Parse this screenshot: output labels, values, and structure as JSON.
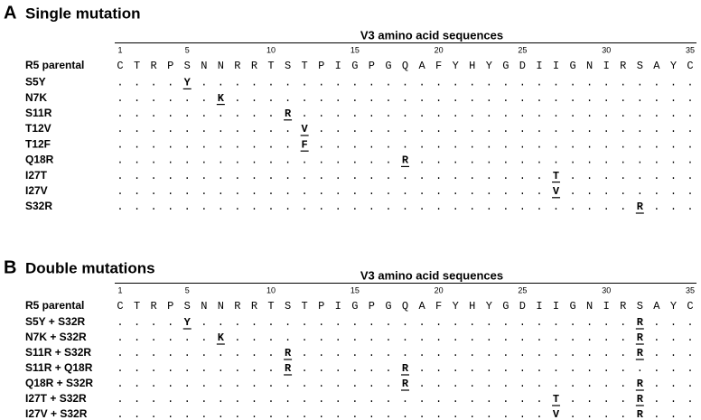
{
  "panels": [
    {
      "letter": "A",
      "title": "Single mutation",
      "header": "V3 amino acid sequences",
      "positions": [
        1,
        5,
        10,
        15,
        20,
        25,
        30,
        35
      ],
      "rows": [
        {
          "label": "R5 parental",
          "residues": [
            "C",
            "T",
            "R",
            "P",
            "S",
            "N",
            "N",
            "R",
            "R",
            "T",
            "S",
            "T",
            "P",
            "I",
            "G",
            "P",
            "G",
            "Q",
            "A",
            "F",
            "Y",
            "H",
            "Y",
            "G",
            "D",
            "I",
            "I",
            "G",
            "N",
            "I",
            "R",
            "S",
            "A",
            "Y",
            "C"
          ]
        },
        {
          "label": "S5Y",
          "residues": [
            ".",
            ".",
            ".",
            ".",
            "Y",
            ".",
            ".",
            ".",
            ".",
            ".",
            ".",
            ".",
            ".",
            ".",
            ".",
            ".",
            ".",
            ".",
            ".",
            ".",
            ".",
            ".",
            ".",
            ".",
            ".",
            ".",
            ".",
            ".",
            ".",
            ".",
            ".",
            ".",
            ".",
            ".",
            "."
          ]
        },
        {
          "label": "N7K",
          "residues": [
            ".",
            ".",
            ".",
            ".",
            ".",
            ".",
            "K",
            ".",
            ".",
            ".",
            ".",
            ".",
            ".",
            ".",
            ".",
            ".",
            ".",
            ".",
            ".",
            ".",
            ".",
            ".",
            ".",
            ".",
            ".",
            ".",
            ".",
            ".",
            ".",
            ".",
            ".",
            ".",
            ".",
            ".",
            "."
          ]
        },
        {
          "label": "S11R",
          "residues": [
            ".",
            ".",
            ".",
            ".",
            ".",
            ".",
            ".",
            ".",
            ".",
            ".",
            "R",
            ".",
            ".",
            ".",
            ".",
            ".",
            ".",
            ".",
            ".",
            ".",
            ".",
            ".",
            ".",
            ".",
            ".",
            ".",
            ".",
            ".",
            ".",
            ".",
            ".",
            ".",
            ".",
            ".",
            "."
          ]
        },
        {
          "label": "T12V",
          "residues": [
            ".",
            ".",
            ".",
            ".",
            ".",
            ".",
            ".",
            ".",
            ".",
            ".",
            ".",
            "V",
            ".",
            ".",
            ".",
            ".",
            ".",
            ".",
            ".",
            ".",
            ".",
            ".",
            ".",
            ".",
            ".",
            ".",
            ".",
            ".",
            ".",
            ".",
            ".",
            ".",
            ".",
            ".",
            "."
          ]
        },
        {
          "label": "T12F",
          "residues": [
            ".",
            ".",
            ".",
            ".",
            ".",
            ".",
            ".",
            ".",
            ".",
            ".",
            ".",
            "F",
            ".",
            ".",
            ".",
            ".",
            ".",
            ".",
            ".",
            ".",
            ".",
            ".",
            ".",
            ".",
            ".",
            ".",
            ".",
            ".",
            ".",
            ".",
            ".",
            ".",
            ".",
            ".",
            "."
          ]
        },
        {
          "label": "Q18R",
          "residues": [
            ".",
            ".",
            ".",
            ".",
            ".",
            ".",
            ".",
            ".",
            ".",
            ".",
            ".",
            ".",
            ".",
            ".",
            ".",
            ".",
            ".",
            "R",
            ".",
            ".",
            ".",
            ".",
            ".",
            ".",
            ".",
            ".",
            ".",
            ".",
            ".",
            ".",
            ".",
            ".",
            ".",
            ".",
            "."
          ]
        },
        {
          "label": "I27T",
          "residues": [
            ".",
            ".",
            ".",
            ".",
            ".",
            ".",
            ".",
            ".",
            ".",
            ".",
            ".",
            ".",
            ".",
            ".",
            ".",
            ".",
            ".",
            ".",
            ".",
            ".",
            ".",
            ".",
            ".",
            ".",
            ".",
            ".",
            "T",
            ".",
            ".",
            ".",
            ".",
            ".",
            ".",
            ".",
            "."
          ]
        },
        {
          "label": "I27V",
          "residues": [
            ".",
            ".",
            ".",
            ".",
            ".",
            ".",
            ".",
            ".",
            ".",
            ".",
            ".",
            ".",
            ".",
            ".",
            ".",
            ".",
            ".",
            ".",
            ".",
            ".",
            ".",
            ".",
            ".",
            ".",
            ".",
            ".",
            "V",
            ".",
            ".",
            ".",
            ".",
            ".",
            ".",
            ".",
            "."
          ]
        },
        {
          "label": "S32R",
          "residues": [
            ".",
            ".",
            ".",
            ".",
            ".",
            ".",
            ".",
            ".",
            ".",
            ".",
            ".",
            ".",
            ".",
            ".",
            ".",
            ".",
            ".",
            ".",
            ".",
            ".",
            ".",
            ".",
            ".",
            ".",
            ".",
            ".",
            ".",
            ".",
            ".",
            ".",
            ".",
            "R",
            ".",
            ".",
            "."
          ]
        }
      ]
    },
    {
      "letter": "B",
      "title": "Double mutations",
      "header": "V3 amino acid sequences",
      "positions": [
        1,
        5,
        10,
        15,
        20,
        25,
        30,
        35
      ],
      "rows": [
        {
          "label": "R5 parental",
          "residues": [
            "C",
            "T",
            "R",
            "P",
            "S",
            "N",
            "N",
            "R",
            "R",
            "T",
            "S",
            "T",
            "P",
            "I",
            "G",
            "P",
            "G",
            "Q",
            "A",
            "F",
            "Y",
            "H",
            "Y",
            "G",
            "D",
            "I",
            "I",
            "G",
            "N",
            "I",
            "R",
            "S",
            "A",
            "Y",
            "C"
          ]
        },
        {
          "label": "S5Y + S32R",
          "residues": [
            ".",
            ".",
            ".",
            ".",
            "Y",
            ".",
            ".",
            ".",
            ".",
            ".",
            ".",
            ".",
            ".",
            ".",
            ".",
            ".",
            ".",
            ".",
            ".",
            ".",
            ".",
            ".",
            ".",
            ".",
            ".",
            ".",
            ".",
            ".",
            ".",
            ".",
            ".",
            "R",
            ".",
            ".",
            "."
          ]
        },
        {
          "label": "N7K + S32R",
          "residues": [
            ".",
            ".",
            ".",
            ".",
            ".",
            ".",
            "K",
            ".",
            ".",
            ".",
            ".",
            ".",
            ".",
            ".",
            ".",
            ".",
            ".",
            ".",
            ".",
            ".",
            ".",
            ".",
            ".",
            ".",
            ".",
            ".",
            ".",
            ".",
            ".",
            ".",
            ".",
            "R",
            ".",
            ".",
            "."
          ]
        },
        {
          "label": "S11R + S32R",
          "residues": [
            ".",
            ".",
            ".",
            ".",
            ".",
            ".",
            ".",
            ".",
            ".",
            ".",
            "R",
            ".",
            ".",
            ".",
            ".",
            ".",
            ".",
            ".",
            ".",
            ".",
            ".",
            ".",
            ".",
            ".",
            ".",
            ".",
            ".",
            ".",
            ".",
            ".",
            ".",
            "R",
            ".",
            ".",
            "."
          ]
        },
        {
          "label": "S11R + Q18R",
          "residues": [
            ".",
            ".",
            ".",
            ".",
            ".",
            ".",
            ".",
            ".",
            ".",
            ".",
            "R",
            ".",
            ".",
            ".",
            ".",
            ".",
            ".",
            "R",
            ".",
            ".",
            ".",
            ".",
            ".",
            ".",
            ".",
            ".",
            ".",
            ".",
            ".",
            ".",
            ".",
            ".",
            ".",
            ".",
            "."
          ]
        },
        {
          "label": "Q18R + S32R",
          "residues": [
            ".",
            ".",
            ".",
            ".",
            ".",
            ".",
            ".",
            ".",
            ".",
            ".",
            ".",
            ".",
            ".",
            ".",
            ".",
            ".",
            ".",
            "R",
            ".",
            ".",
            ".",
            ".",
            ".",
            ".",
            ".",
            ".",
            ".",
            ".",
            ".",
            ".",
            ".",
            "R",
            ".",
            ".",
            "."
          ]
        },
        {
          "label": "I27T + S32R",
          "residues": [
            ".",
            ".",
            ".",
            ".",
            ".",
            ".",
            ".",
            ".",
            ".",
            ".",
            ".",
            ".",
            ".",
            ".",
            ".",
            ".",
            ".",
            ".",
            ".",
            ".",
            ".",
            ".",
            ".",
            ".",
            ".",
            ".",
            "T",
            ".",
            ".",
            ".",
            ".",
            "R",
            ".",
            ".",
            "."
          ]
        },
        {
          "label": "I27V + S32R",
          "residues": [
            ".",
            ".",
            ".",
            ".",
            ".",
            ".",
            ".",
            ".",
            ".",
            ".",
            ".",
            ".",
            ".",
            ".",
            ".",
            ".",
            ".",
            ".",
            ".",
            ".",
            ".",
            ".",
            ".",
            ".",
            ".",
            ".",
            "V",
            ".",
            ".",
            ".",
            ".",
            "R",
            ".",
            ".",
            "."
          ]
        }
      ]
    }
  ]
}
